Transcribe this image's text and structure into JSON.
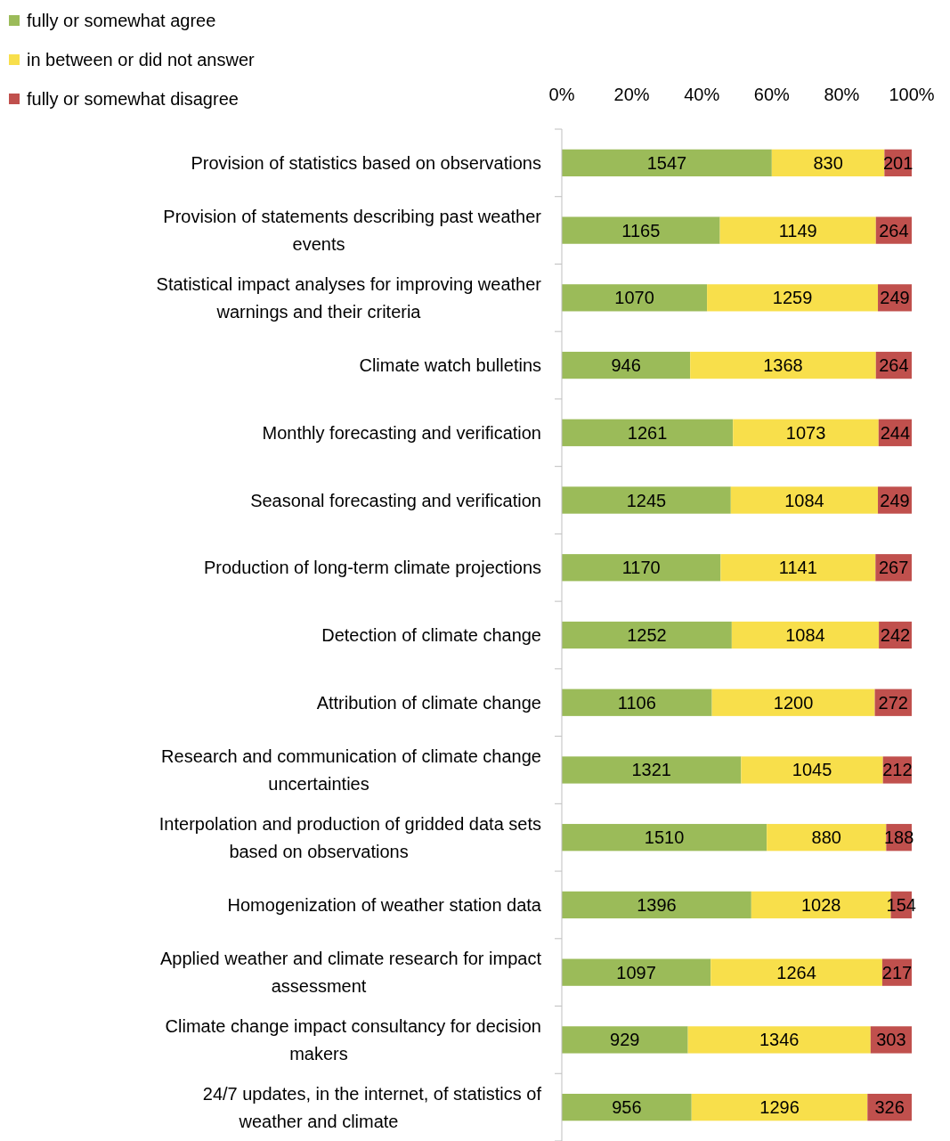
{
  "chart_data": {
    "type": "bar",
    "orientation": "horizontal",
    "stacked": true,
    "categories": [
      "Provision of statistics based on observations",
      "Provision of statements describing past weather events",
      "Statistical impact analyses for improving weather warnings and their criteria",
      "Climate watch bulletins",
      "Monthly forecasting and verification",
      "Seasonal forecasting and verification",
      "Production of long-term climate projections",
      "Detection of climate change",
      "Attribution of climate change",
      "Research and communication of climate change uncertainties",
      "Interpolation and production of gridded data sets based on observations",
      "Homogenization of weather station data",
      "Applied weather and climate research for impact assessment",
      "Climate change impact consultancy for decision makers",
      "24/7 updates, in the internet, of statistics of weather and climate"
    ],
    "series": [
      {
        "name": "fully or somewhat agree",
        "color": "#9bbb59",
        "values": [
          1547,
          1165,
          1070,
          946,
          1261,
          1245,
          1170,
          1252,
          1106,
          1321,
          1510,
          1396,
          1097,
          929,
          956
        ]
      },
      {
        "name": "in between or did not answer",
        "color": "#f8df4b",
        "values": [
          830,
          1149,
          1259,
          1368,
          1073,
          1084,
          1141,
          1084,
          1200,
          1045,
          880,
          1028,
          1264,
          1346,
          1296
        ]
      },
      {
        "name": "fully or somewhat disagree",
        "color": "#c0504d",
        "values": [
          201,
          264,
          249,
          264,
          244,
          249,
          267,
          242,
          272,
          212,
          188,
          154,
          217,
          303,
          326
        ]
      }
    ],
    "xlim": [
      0,
      2578
    ],
    "x2lim": [
      0,
      100
    ],
    "x2ticks": [
      {
        "value": 0,
        "label": "0%"
      },
      {
        "value": 20,
        "label": "20%"
      },
      {
        "value": 40,
        "label": "40%"
      },
      {
        "value": 60,
        "label": "60%"
      },
      {
        "value": 80,
        "label": "80%"
      },
      {
        "value": 100,
        "label": "100%"
      }
    ],
    "data_labels": true,
    "legend": "top left"
  }
}
